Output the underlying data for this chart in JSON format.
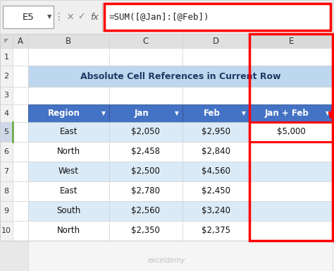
{
  "title": "Absolute Cell References in Current Row",
  "formula_bar_cell": "E5",
  "formula_bar_text": "=SUM([@Jan]:[@Feb])",
  "table_headers": [
    "Region",
    "Jan",
    "Feb",
    "Jan + Feb"
  ],
  "table_data": [
    [
      "East",
      "$2,050",
      "$2,950",
      "$5,000"
    ],
    [
      "North",
      "$2,458",
      "$2,840",
      ""
    ],
    [
      "West",
      "$2,500",
      "$4,560",
      ""
    ],
    [
      "East",
      "$2,780",
      "$2,450",
      ""
    ],
    [
      "South",
      "$2,560",
      "$3,240",
      ""
    ],
    [
      "North",
      "$2,350",
      "$2,375",
      ""
    ]
  ],
  "header_bg": "#4472C4",
  "title_bg": "#BDD7EE",
  "data_row_even_bg": "#DAEAF7",
  "data_row_odd_bg": "#FFFFFF",
  "formula_bar_bg": "#F2F2F2",
  "col_header_bg": "#E0E0E0",
  "e_col_header_bg": "#D9D9D9",
  "row_num_bg": "#F2F2F2",
  "e_row_num_bg": "#CFD8E8",
  "red_border": "#FF0000",
  "green_border": "#70AD47",
  "grid_color": "#D0D0D0",
  "white": "#FFFFFF",
  "watermark_color": "#AAAAAA",
  "watermark": "exceldemy"
}
